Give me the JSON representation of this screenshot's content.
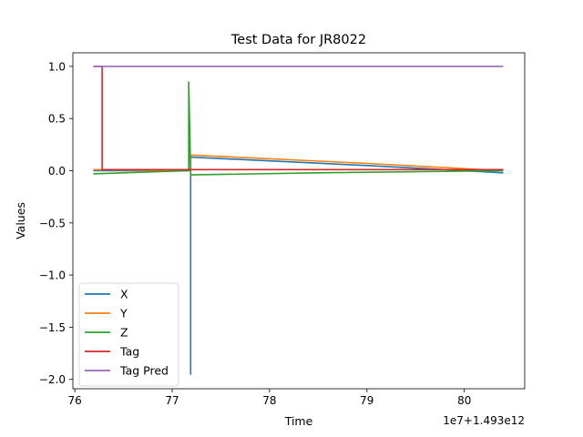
{
  "chart_data": {
    "type": "line",
    "title": "Test Data for JR8022",
    "xlabel": "Time",
    "ylabel": "Values",
    "x_offset_label": "1e7+1.493e12",
    "xlim": [
      75.98,
      80.62
    ],
    "ylim": [
      -2.09,
      1.13
    ],
    "xticks": [
      76,
      77,
      78,
      79,
      80
    ],
    "yticks": [
      -2.0,
      -1.5,
      -1.0,
      -0.5,
      0.0,
      0.5,
      1.0
    ],
    "xtick_labels": [
      "76",
      "77",
      "78",
      "79",
      "80"
    ],
    "ytick_labels": [
      "−2.0",
      "−1.5",
      "−1.0",
      "−0.5",
      "0.0",
      "0.5",
      "1.0"
    ],
    "grid": false,
    "legend_position": "lower-left",
    "series": [
      {
        "name": "X",
        "color": "#1f77b4",
        "points": [
          [
            76.19,
            0.0
          ],
          [
            77.19,
            0.0
          ],
          [
            77.19,
            -1.95
          ],
          [
            77.19,
            0.13
          ],
          [
            79.0,
            0.05
          ],
          [
            80.4,
            -0.02
          ]
        ]
      },
      {
        "name": "Y",
        "color": "#ff7f0e",
        "points": [
          [
            76.19,
            0.01
          ],
          [
            77.19,
            0.0
          ],
          [
            77.19,
            0.15
          ],
          [
            79.0,
            0.07
          ],
          [
            80.4,
            0.0
          ]
        ]
      },
      {
        "name": "Z",
        "color": "#2ca02c",
        "points": [
          [
            76.19,
            -0.03
          ],
          [
            77.17,
            0.0
          ],
          [
            77.17,
            0.85
          ],
          [
            77.19,
            -0.04
          ],
          [
            78.5,
            -0.02
          ],
          [
            80.4,
            0.0
          ]
        ]
      },
      {
        "name": "Tag",
        "color": "#d62728",
        "points": [
          [
            76.19,
            1.0
          ],
          [
            76.28,
            1.0
          ],
          [
            76.28,
            0.01
          ],
          [
            80.4,
            0.01
          ]
        ]
      },
      {
        "name": "Tag Pred",
        "color": "#9467bd",
        "points": [
          [
            76.19,
            1.0
          ],
          [
            80.4,
            1.0
          ]
        ]
      }
    ]
  }
}
